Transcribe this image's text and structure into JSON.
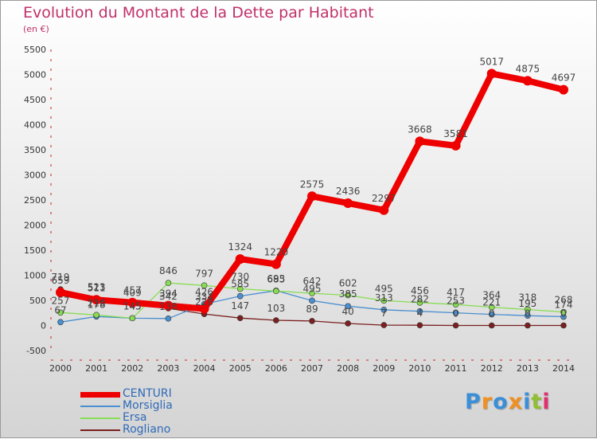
{
  "title": "Evolution du Montant de la Dette par Habitant",
  "subtitle": "(en €)",
  "logo_text": "Proxiti",
  "chart_data": {
    "type": "line",
    "title": "Evolution du Montant de la Dette par Habitant",
    "subtitle": "(en €)",
    "xlabel": "",
    "ylabel": "",
    "ylim": [
      -500,
      5500
    ],
    "yticks": [
      "-500",
      "0",
      "500",
      "1000",
      "1500",
      "2000",
      "2500",
      "3000",
      "3500",
      "4000",
      "4500",
      "5000",
      "5500"
    ],
    "x": [
      "2000",
      "2001",
      "2002",
      "2003",
      "2004",
      "2005",
      "2006",
      "2007",
      "2008",
      "2009",
      "2010",
      "2011",
      "2012",
      "2013",
      "2014"
    ],
    "grid": false,
    "legend_position": "bottom-left",
    "series": [
      {
        "name": "Rogliano",
        "color": "#7a2020",
        "values": [
          719,
          523,
          409,
          342,
          228,
          147,
          103,
          89,
          40,
          7,
          4,
          0,
          0,
          0,
          0
        ],
        "labels": [
          "719",
          "523",
          "409",
          "342",
          "228",
          "147",
          "103",
          "89",
          "40",
          "7",
          "4",
          "0",
          "0",
          "0",
          "0"
        ]
      },
      {
        "name": "Morsiglia",
        "color": "#4a8fd0",
        "values": [
          67,
          178,
          145,
          138,
          426,
          585,
          693,
          495,
          385,
          313,
          282,
          253,
          221,
          195,
          174
        ],
        "labels": [
          "67",
          "178",
          "145",
          "138",
          "426",
          "585",
          "693",
          "495",
          "385",
          "313",
          "282",
          "253",
          "221",
          "195",
          "174"
        ]
      },
      {
        "name": "Ersa",
        "color": "#88dd55",
        "values": [
          257,
          210,
          145,
          846,
          797,
          730,
          685,
          642,
          602,
          495,
          456,
          417,
          364,
          318,
          268
        ],
        "labels": [
          "257",
          "210",
          "145",
          "846",
          "797",
          "730",
          "685",
          "642",
          "602",
          "495",
          "456",
          "417",
          "364",
          "318",
          "268"
        ]
      },
      {
        "name": "CENTURI",
        "color": "#ee0000",
        "values": [
          659,
          511,
          457,
          394,
          334,
          1324,
          1220,
          2575,
          2436,
          2297,
          3668,
          3581,
          5017,
          4875,
          4697
        ],
        "labels": [
          "659",
          "511",
          "457",
          "394",
          "334",
          "1324",
          "1220",
          "2575",
          "2436",
          "2297",
          "3668",
          "3581",
          "5017",
          "4875",
          "4697"
        ]
      }
    ],
    "legend": [
      "CENTURI",
      "Morsiglia",
      "Ersa",
      "Rogliano"
    ],
    "label_color": "#444444",
    "axis_color": "#cc2222"
  }
}
